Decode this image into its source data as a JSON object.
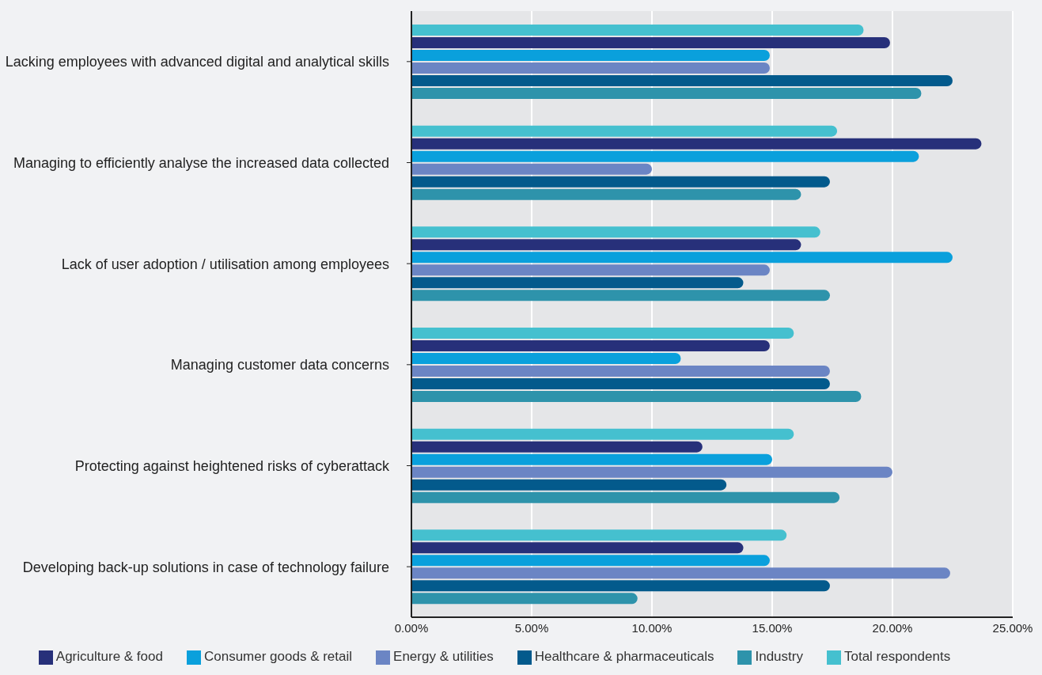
{
  "chart_data": {
    "type": "bar",
    "orientation": "horizontal",
    "categories": [
      "Lacking employees with advanced digital and analytical skills",
      "Managing to efficiently analyse the increased data collected",
      "Lack of user adoption / utilisation among employees",
      "Managing customer data concerns",
      "Protecting against heightened risks of cyberattack",
      "Developing back-up solutions in case of technology failure"
    ],
    "series": [
      {
        "name": "Total respondents",
        "color": "#45c0cf",
        "values": [
          18.8,
          17.7,
          17.0,
          15.9,
          15.9,
          15.6
        ]
      },
      {
        "name": "Agriculture & food",
        "color": "#27307a",
        "values": [
          19.9,
          23.7,
          16.2,
          14.9,
          12.1,
          13.8
        ]
      },
      {
        "name": "Consumer goods & retail",
        "color": "#0aa0dc",
        "values": [
          14.9,
          21.1,
          22.5,
          11.2,
          15.0,
          14.9
        ]
      },
      {
        "name": "Energy & utilities",
        "color": "#6b85c4",
        "values": [
          14.9,
          10.0,
          14.9,
          17.4,
          20.0,
          22.4
        ]
      },
      {
        "name": "Healthcare & pharmaceuticals",
        "color": "#035a8c",
        "values": [
          22.5,
          17.4,
          13.8,
          17.4,
          13.1,
          17.4
        ]
      },
      {
        "name": "Industry",
        "color": "#2e93ab",
        "values": [
          21.2,
          16.2,
          17.4,
          18.7,
          17.8,
          9.4
        ]
      }
    ],
    "xlim": [
      0,
      25
    ],
    "xticks": [
      {
        "value": 0,
        "label": "0.00%"
      },
      {
        "value": 5,
        "label": "5.00%"
      },
      {
        "value": 10,
        "label": "10.00%"
      },
      {
        "value": 15,
        "label": "15.00%"
      },
      {
        "value": 20,
        "label": "20.00%"
      },
      {
        "value": 25,
        "label": "25.00%"
      }
    ],
    "grid": "x",
    "legend": "bottom"
  }
}
